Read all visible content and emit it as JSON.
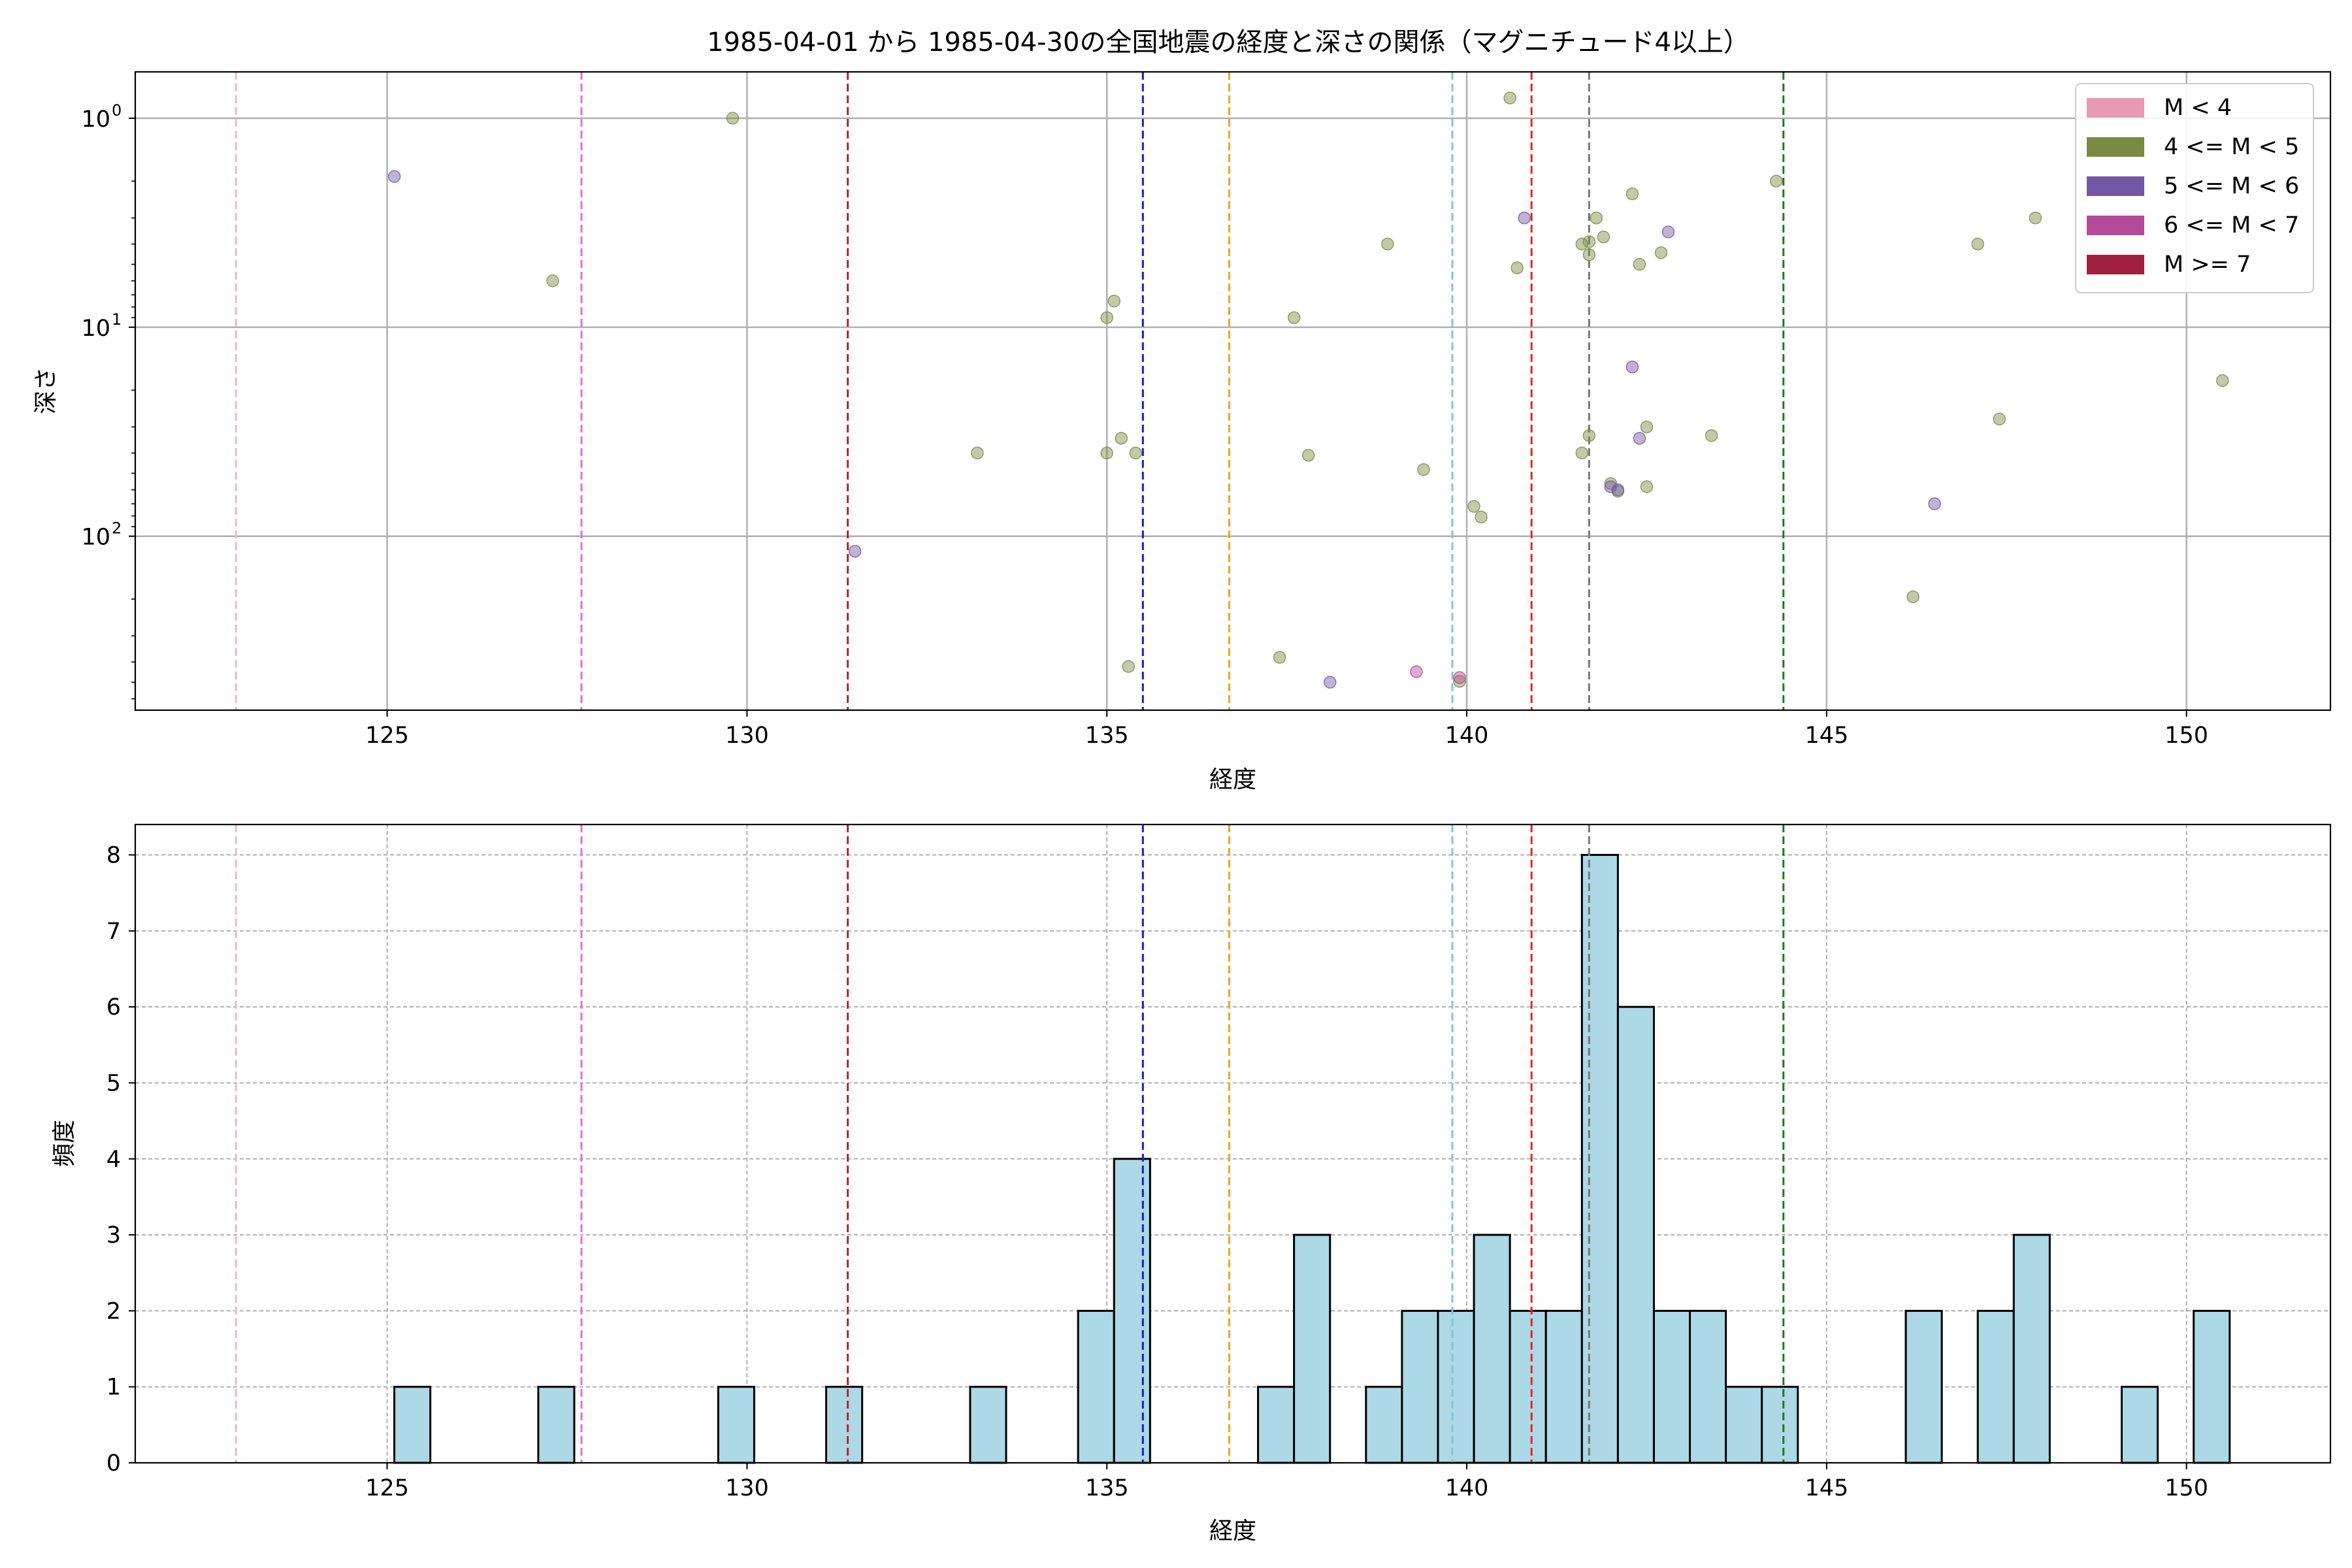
{
  "title": "1985-04-01 から 1985-04-30の全国地震の経度と深さの関係（マグニチュード4以上）",
  "chart_data": [
    {
      "type": "scatter",
      "xlabel": "経度",
      "ylabel": "深さ",
      "xlim": [
        121.5,
        152
      ],
      "ylim": [
        680,
        0.6
      ],
      "yscale": "log",
      "y_inverted": true,
      "grid": true,
      "x_ticks": [
        125,
        130,
        135,
        140,
        145,
        150
      ],
      "y_ticks": [
        {
          "value": 1,
          "exp": "0"
        },
        {
          "value": 10,
          "exp": "1"
        },
        {
          "value": 100,
          "exp": "2"
        }
      ],
      "legend": {
        "placement": "top-right",
        "entries": [
          {
            "label": "M < 4",
            "color": "#e899b4"
          },
          {
            "label": "4 <= M < 5",
            "color": "#7a8a43"
          },
          {
            "label": "5 <= M < 6",
            "color": "#7258a3"
          },
          {
            "label": "6 <= M < 7",
            "color": "#b5499a"
          },
          {
            "label": "M >= 7",
            "color": "#a2203f"
          }
        ]
      },
      "vlines": [
        {
          "x": 122.9,
          "color": "#f4b6cc"
        },
        {
          "x": 127.7,
          "color": "#e46ee0"
        },
        {
          "x": 131.4,
          "color": "#b2222a"
        },
        {
          "x": 135.5,
          "color": "#1a1ad0"
        },
        {
          "x": 136.7,
          "color": "#f0a61c"
        },
        {
          "x": 139.8,
          "color": "#7fc6e0"
        },
        {
          "x": 140.9,
          "color": "#ee2222"
        },
        {
          "x": 141.7,
          "color": "#777777"
        },
        {
          "x": 144.4,
          "color": "#1d7a1d"
        }
      ],
      "series": [
        {
          "class": "4 <= M < 5",
          "color": "#7a8a43",
          "points": [
            [
              127.3,
              6
            ],
            [
              129.8,
              1
            ],
            [
              133.2,
              40
            ],
            [
              135.0,
              9
            ],
            [
              135.1,
              7.5
            ],
            [
              135.0,
              40
            ],
            [
              135.2,
              34
            ],
            [
              135.4,
              40
            ],
            [
              135.3,
              420
            ],
            [
              137.4,
              380
            ],
            [
              137.6,
              9
            ],
            [
              137.8,
              41
            ],
            [
              138.9,
              4
            ],
            [
              139.4,
              48
            ],
            [
              139.9,
              495
            ],
            [
              140.1,
              72
            ],
            [
              140.2,
              81
            ],
            [
              140.6,
              0.8
            ],
            [
              140.7,
              5.2
            ],
            [
              141.6,
              4
            ],
            [
              141.7,
              3.9
            ],
            [
              141.7,
              4.5
            ],
            [
              141.8,
              3
            ],
            [
              141.9,
              3.7
            ],
            [
              141.6,
              40
            ],
            [
              141.7,
              33
            ],
            [
              142.0,
              56
            ],
            [
              142.1,
              61
            ],
            [
              142.3,
              2.3
            ],
            [
              142.4,
              5
            ],
            [
              142.5,
              30
            ],
            [
              142.5,
              58
            ],
            [
              142.7,
              4.4
            ],
            [
              143.4,
              33
            ],
            [
              144.3,
              2
            ],
            [
              146.2,
              195
            ],
            [
              147.1,
              4
            ],
            [
              147.4,
              27.5
            ],
            [
              147.9,
              3
            ],
            [
              150.5,
              18
            ]
          ]
        },
        {
          "class": "5 <= M < 6",
          "color": "#7258a3",
          "points": [
            [
              125.1,
              1.9
            ],
            [
              131.5,
              118
            ],
            [
              138.1,
              500
            ],
            [
              140.8,
              3
            ],
            [
              142.0,
              58
            ],
            [
              142.1,
              60
            ],
            [
              142.3,
              15.5
            ],
            [
              142.4,
              34
            ],
            [
              142.8,
              3.5
            ],
            [
              146.5,
              70
            ]
          ]
        },
        {
          "class": "6 <= M < 7",
          "color": "#b5499a",
          "points": [
            [
              139.3,
              445
            ],
            [
              139.9,
              475
            ]
          ]
        }
      ]
    },
    {
      "type": "bar",
      "xlabel": "経度",
      "ylabel": "頻度",
      "xlim": [
        121.5,
        152
      ],
      "ylim": [
        0,
        8.4
      ],
      "grid": true,
      "bar_color": "#add8e6",
      "x_ticks": [
        125,
        130,
        135,
        140,
        145,
        150
      ],
      "y_ticks": [
        0,
        1,
        2,
        3,
        4,
        5,
        6,
        7,
        8
      ],
      "bin_width": 0.5,
      "bins": [
        {
          "start": 125.1,
          "count": 1
        },
        {
          "start": 127.1,
          "count": 1
        },
        {
          "start": 129.6,
          "count": 1
        },
        {
          "start": 131.1,
          "count": 1
        },
        {
          "start": 133.1,
          "count": 1
        },
        {
          "start": 134.6,
          "count": 2
        },
        {
          "start": 135.1,
          "count": 4
        },
        {
          "start": 137.1,
          "count": 1
        },
        {
          "start": 137.6,
          "count": 3
        },
        {
          "start": 138.6,
          "count": 1
        },
        {
          "start": 139.1,
          "count": 2
        },
        {
          "start": 139.6,
          "count": 2
        },
        {
          "start": 140.1,
          "count": 3
        },
        {
          "start": 140.6,
          "count": 2
        },
        {
          "start": 141.1,
          "count": 2
        },
        {
          "start": 141.6,
          "count": 8
        },
        {
          "start": 142.1,
          "count": 6
        },
        {
          "start": 142.6,
          "count": 2
        },
        {
          "start": 143.1,
          "count": 2
        },
        {
          "start": 143.6,
          "count": 1
        },
        {
          "start": 144.1,
          "count": 1
        },
        {
          "start": 146.1,
          "count": 2
        },
        {
          "start": 147.1,
          "count": 2
        },
        {
          "start": 147.6,
          "count": 3
        },
        {
          "start": 149.1,
          "count": 1
        },
        {
          "start": 150.1,
          "count": 2
        }
      ],
      "vlines": [
        {
          "x": 122.9,
          "color": "#f4b6cc"
        },
        {
          "x": 127.7,
          "color": "#e46ee0"
        },
        {
          "x": 131.4,
          "color": "#b2222a"
        },
        {
          "x": 135.5,
          "color": "#1a1ad0"
        },
        {
          "x": 136.7,
          "color": "#f0a61c"
        },
        {
          "x": 139.8,
          "color": "#7fc6e0"
        },
        {
          "x": 140.9,
          "color": "#ee2222"
        },
        {
          "x": 141.7,
          "color": "#777777"
        },
        {
          "x": 144.4,
          "color": "#1d7a1d"
        }
      ]
    }
  ]
}
